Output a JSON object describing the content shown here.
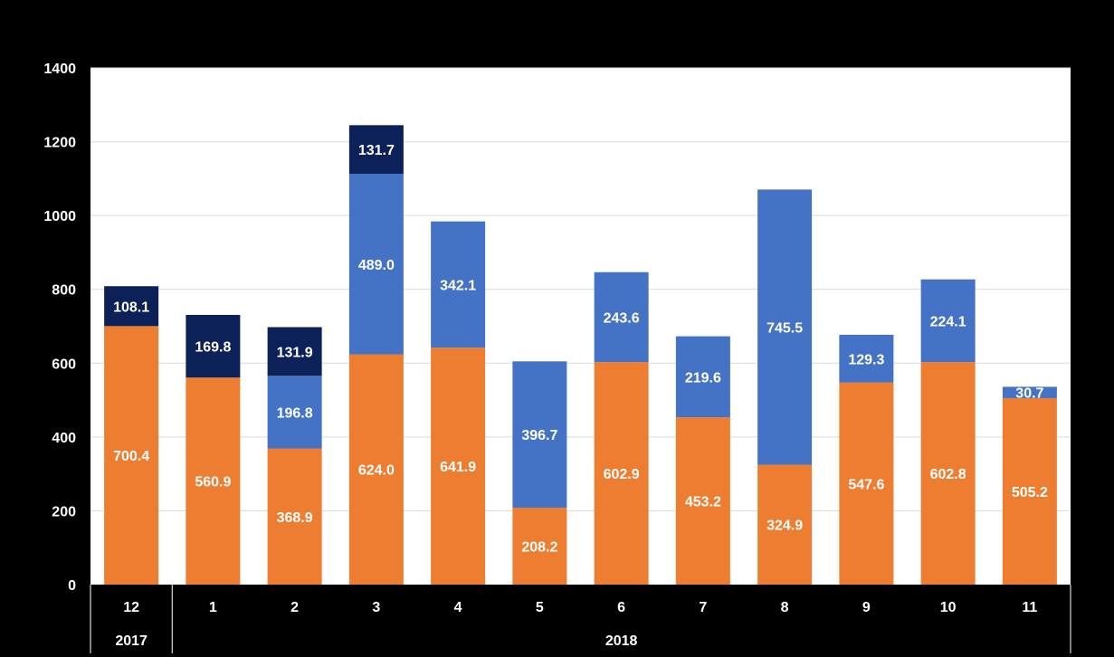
{
  "colors": {
    "background": "#000000",
    "plot": "#ffffff",
    "grid": "#d9d9d9",
    "series_bottom": "#ed7d31",
    "series_middle": "#4472c4",
    "series_top": "#0c2157"
  },
  "chart_data": {
    "type": "bar",
    "stacked": true,
    "title": "",
    "xlabel": "",
    "ylabel": "",
    "ylim": [
      0,
      1400
    ],
    "yticks": [
      0,
      200,
      400,
      600,
      800,
      1000,
      1200,
      1400
    ],
    "grid": true,
    "legend": "none",
    "categories": [
      "12",
      "1",
      "2",
      "3",
      "4",
      "5",
      "6",
      "7",
      "8",
      "9",
      "10",
      "11"
    ],
    "category_groups": [
      {
        "label": "2017",
        "span": 1
      },
      {
        "label": "2018",
        "span": 11
      }
    ],
    "series": [
      {
        "color": "#ed7d31",
        "values": [
          700.4,
          560.9,
          368.9,
          624.0,
          641.9,
          208.2,
          602.9,
          453.2,
          324.9,
          547.6,
          602.8,
          505.2
        ],
        "labels": [
          "700.4",
          "560.9",
          "368.9",
          "624.0",
          "641.9",
          "208.2",
          "602.9",
          "453.2",
          "324.9",
          "547.6",
          "602.8",
          "505.2"
        ]
      },
      {
        "color": "#4472c4",
        "values": [
          0,
          0,
          196.8,
          489.0,
          342.1,
          396.7,
          243.6,
          219.6,
          745.5,
          129.3,
          224.1,
          30.7
        ],
        "labels": [
          "",
          "",
          "196.8",
          "489.0",
          "342.1",
          "396.7",
          "243.6",
          "219.6",
          "745.5",
          "129.3",
          "224.1",
          "30.7"
        ]
      },
      {
        "color": "#0c2157",
        "values": [
          108.1,
          169.8,
          131.9,
          131.7,
          0,
          0,
          0,
          0,
          0,
          0,
          0,
          0
        ],
        "labels": [
          "108.1",
          "169.8",
          "131.9",
          "131.7",
          "",
          "",
          "",
          "",
          "",
          "",
          "",
          ""
        ]
      }
    ]
  }
}
